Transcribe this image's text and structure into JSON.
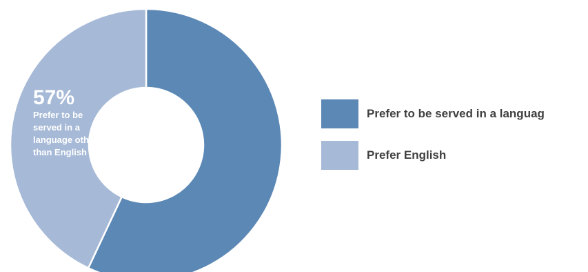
{
  "chart_data": {
    "type": "pie",
    "donut": true,
    "title": "",
    "slices": [
      {
        "name": "Prefer to be served in a language other than English",
        "value": 57,
        "color": "#5b88b5"
      },
      {
        "name": "Prefer English",
        "value": 43,
        "color": "#a6b9d6"
      }
    ],
    "data_label": {
      "value_text": "57%",
      "text": "Prefer to be served in a language other than English"
    },
    "legend": {
      "placement": "right",
      "items": [
        "Prefer to be served in a languag",
        "Prefer English"
      ]
    }
  }
}
